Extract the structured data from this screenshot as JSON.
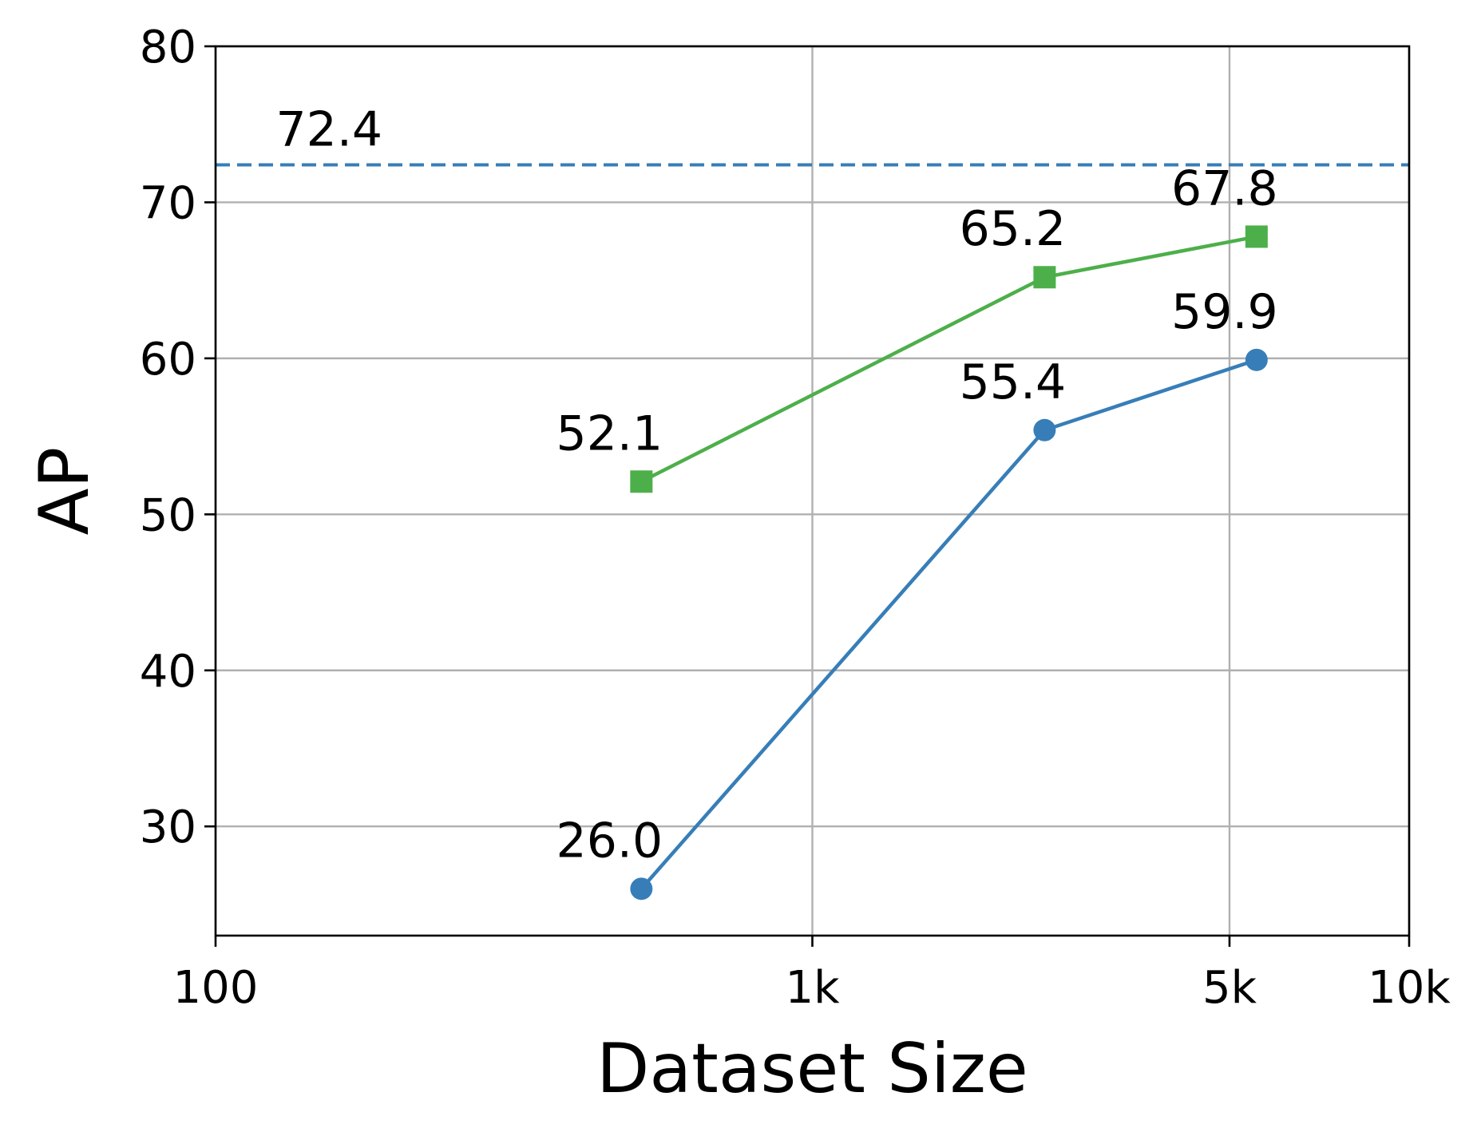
{
  "chart_data": {
    "type": "line",
    "xlabel": "Dataset Size",
    "ylabel": "AP",
    "xscale": "log",
    "xlim": [
      100,
      10000
    ],
    "ylim": [
      23,
      80
    ],
    "grid": true,
    "xticks": [
      {
        "value": 100,
        "label": "100"
      },
      {
        "value": 1000,
        "label": "1k"
      },
      {
        "value": 5000,
        "label": "5k"
      },
      {
        "value": 10000,
        "label": "10k"
      }
    ],
    "yticks": [
      {
        "value": 30,
        "label": "30"
      },
      {
        "value": 40,
        "label": "40"
      },
      {
        "value": 50,
        "label": "50"
      },
      {
        "value": 60,
        "label": "60"
      },
      {
        "value": 70,
        "label": "70"
      },
      {
        "value": 80,
        "label": "80"
      }
    ],
    "series": [
      {
        "color": "#4daf4a",
        "marker": "square",
        "points": [
          {
            "x": 517,
            "y": 52.1,
            "label": "52.1"
          },
          {
            "x": 2450,
            "y": 65.2,
            "label": "65.2"
          },
          {
            "x": 5550,
            "y": 67.8,
            "label": "67.8"
          }
        ]
      },
      {
        "color": "#377eb8",
        "marker": "circle",
        "points": [
          {
            "x": 517,
            "y": 26.0,
            "label": "26.0"
          },
          {
            "x": 2450,
            "y": 55.4,
            "label": "55.4"
          },
          {
            "x": 5550,
            "y": 59.9,
            "label": "59.9"
          }
        ]
      }
    ],
    "reference_line": {
      "y": 72.4,
      "label": "72.4",
      "color": "#377eb8",
      "style": "dashed"
    }
  }
}
